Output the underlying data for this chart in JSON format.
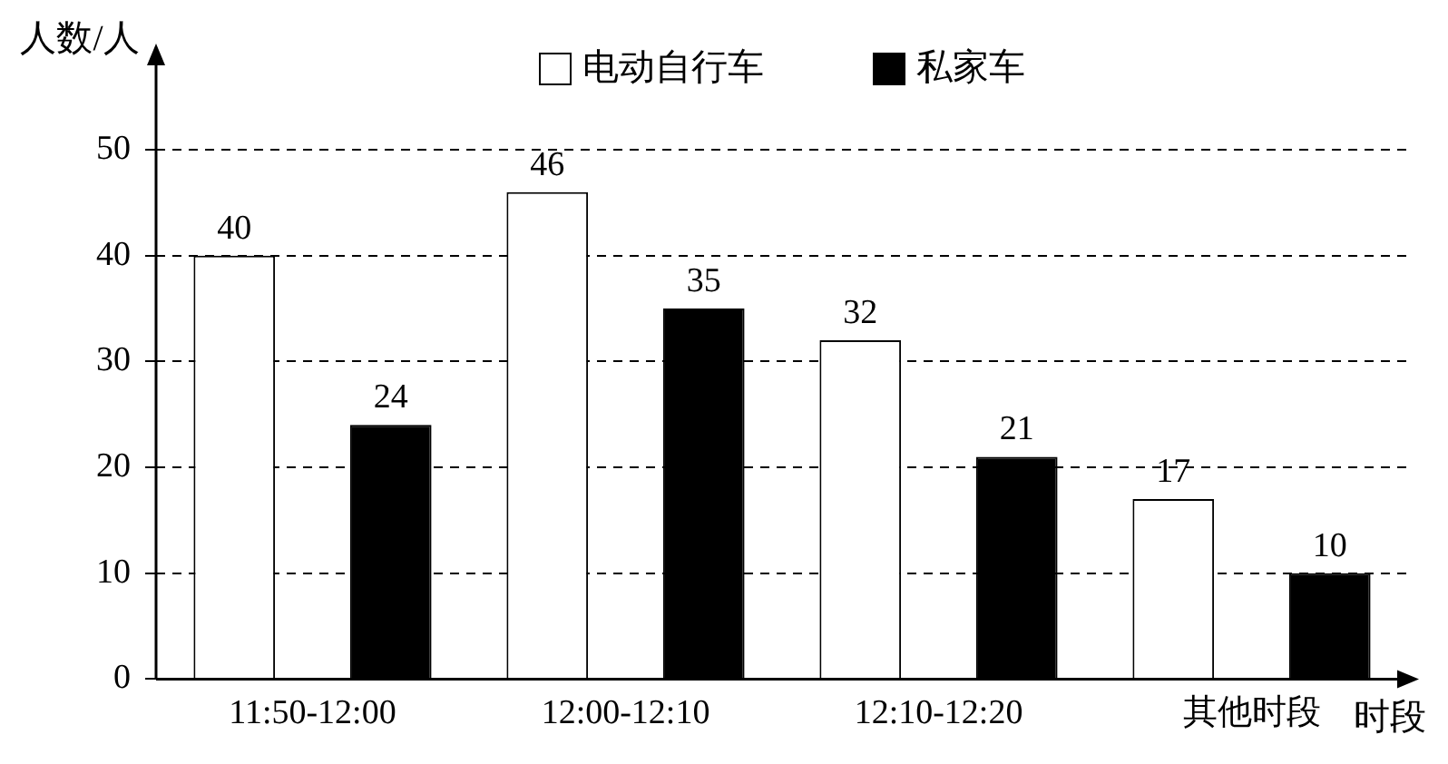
{
  "chart_data": {
    "type": "bar",
    "xlabel": "时段",
    "ylabel": "人数/人",
    "categories": [
      "11:50-12:00",
      "12:00-12:10",
      "12:10-12:20",
      "其他时段"
    ],
    "series": [
      {
        "name": "电动自行车",
        "color": "#ffffff",
        "values": [
          40,
          46,
          32,
          17
        ]
      },
      {
        "name": "私家车",
        "color": "#000000",
        "values": [
          24,
          35,
          21,
          10
        ]
      }
    ],
    "ylim": [
      0,
      59
    ],
    "yticks": [
      0,
      10,
      20,
      30,
      40,
      50
    ],
    "grid": "y",
    "legend": "top",
    "data_labels": true
  }
}
